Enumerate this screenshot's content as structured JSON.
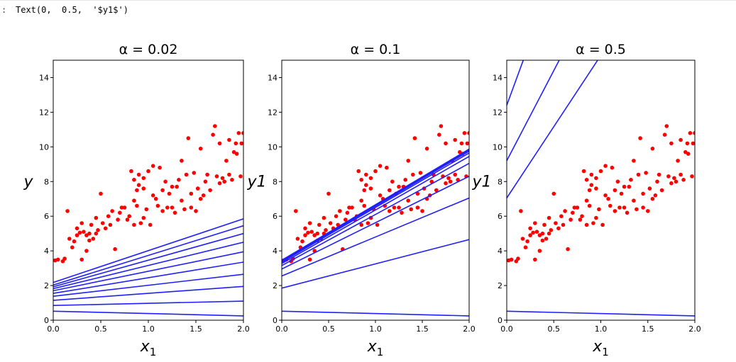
{
  "output": {
    "prompt": ":",
    "text": "Text(0,  0.5,  '$y1$')"
  },
  "colors": {
    "line": "#1f1fff",
    "points": "#ff0000",
    "axis": "#000000"
  },
  "chart_data": [
    {
      "type": "scatter+line",
      "title": "α = 0.02",
      "xlabel": "x",
      "xlabel_sub": "1",
      "ylabel": "y",
      "xlim": [
        0,
        2
      ],
      "ylim": [
        0,
        15
      ],
      "xticks": [
        0.0,
        0.5,
        1.0,
        1.5,
        2.0
      ],
      "xtick_labels": [
        "0.0",
        "0.5",
        "1.0",
        "1.5",
        "2.0"
      ],
      "yticks": [
        0,
        2,
        4,
        6,
        8,
        10,
        12,
        14
      ],
      "ytick_labels": [
        "0",
        "2",
        "4",
        "6",
        "8",
        "10",
        "12",
        "14"
      ],
      "lines": [
        {
          "y0": 0.52,
          "y1": 0.25
        },
        {
          "y0": 0.85,
          "y1": 1.1
        },
        {
          "y0": 1.15,
          "y1": 1.95
        },
        {
          "y0": 1.38,
          "y1": 2.65
        },
        {
          "y0": 1.55,
          "y1": 3.35
        },
        {
          "y0": 1.7,
          "y1": 3.95
        },
        {
          "y0": 1.82,
          "y1": 4.5
        },
        {
          "y0": 1.93,
          "y1": 5.0
        },
        {
          "y0": 2.03,
          "y1": 5.45
        },
        {
          "y0": 2.18,
          "y1": 5.85
        }
      ]
    },
    {
      "type": "scatter+line",
      "title": "α = 0.1",
      "xlabel": "x",
      "xlabel_sub": "1",
      "ylabel": "y1",
      "xlim": [
        0,
        2
      ],
      "ylim": [
        0,
        15
      ],
      "xticks": [
        0.0,
        0.5,
        1.0,
        1.5,
        2.0
      ],
      "xtick_labels": [
        "0.0",
        "0.5",
        "1.0",
        "1.5",
        "2.0"
      ],
      "yticks": [
        0,
        2,
        4,
        6,
        8,
        10,
        12,
        14
      ],
      "ytick_labels": [
        "0",
        "2",
        "4",
        "6",
        "8",
        "10",
        "12",
        "14"
      ],
      "lines": [
        {
          "y0": 0.52,
          "y1": 0.25
        },
        {
          "y0": 1.85,
          "y1": 4.65
        },
        {
          "y0": 2.55,
          "y1": 7.05
        },
        {
          "y0": 2.95,
          "y1": 8.3
        },
        {
          "y0": 3.15,
          "y1": 9.05
        },
        {
          "y0": 3.27,
          "y1": 9.45
        },
        {
          "y0": 3.35,
          "y1": 9.65
        },
        {
          "y0": 3.4,
          "y1": 9.75
        },
        {
          "y0": 3.43,
          "y1": 9.82
        },
        {
          "y0": 3.46,
          "y1": 9.87
        }
      ]
    },
    {
      "type": "scatter+line",
      "title": "α = 0.5",
      "xlabel": "x",
      "xlabel_sub": "1",
      "ylabel": "y1",
      "xlim": [
        0,
        2
      ],
      "ylim": [
        0,
        15
      ],
      "xticks": [
        0.0,
        0.5,
        1.0,
        1.5,
        2.0
      ],
      "xtick_labels": [
        "0.0",
        "0.5",
        "1.0",
        "1.5",
        "2.0"
      ],
      "yticks": [
        0,
        2,
        4,
        6,
        8,
        10,
        12,
        14
      ],
      "ytick_labels": [
        "0",
        "2",
        "4",
        "6",
        "8",
        "10",
        "12",
        "14"
      ],
      "lines": [
        {
          "y0": 0.52,
          "y1": 0.25
        },
        {
          "y0": 7.05,
          "y1": 23.5
        },
        {
          "y0": 9.2,
          "y1": 30.0
        },
        {
          "y0": 12.4,
          "y1": 42.0
        }
      ]
    }
  ],
  "points": [
    [
      0.02,
      3.45
    ],
    [
      0.05,
      3.5
    ],
    [
      0.1,
      3.4
    ],
    [
      0.12,
      3.55
    ],
    [
      0.15,
      6.3
    ],
    [
      0.17,
      4.7
    ],
    [
      0.2,
      4.2
    ],
    [
      0.22,
      4.55
    ],
    [
      0.25,
      5.3
    ],
    [
      0.28,
      5.05
    ],
    [
      0.3,
      5.6
    ],
    [
      0.3,
      3.5
    ],
    [
      0.32,
      5.1
    ],
    [
      0.35,
      4.9
    ],
    [
      0.35,
      4.0
    ],
    [
      0.38,
      4.6
    ],
    [
      0.38,
      5.0
    ],
    [
      0.4,
      5.5
    ],
    [
      0.42,
      4.7
    ],
    [
      0.45,
      5.0
    ],
    [
      0.47,
      5.2
    ],
    [
      0.5,
      7.3
    ],
    [
      0.52,
      5.6
    ],
    [
      0.55,
      5.3
    ],
    [
      0.58,
      6.0
    ],
    [
      0.6,
      5.5
    ],
    [
      0.62,
      6.3
    ],
    [
      0.65,
      4.1
    ],
    [
      0.68,
      5.8
    ],
    [
      0.7,
      6.2
    ],
    [
      0.75,
      6.5
    ],
    [
      0.78,
      5.8
    ],
    [
      0.8,
      6.0
    ],
    [
      0.82,
      8.6
    ],
    [
      0.85,
      5.5
    ],
    [
      0.85,
      8.1
    ],
    [
      0.88,
      6.6
    ],
    [
      0.88,
      7.5
    ],
    [
      0.9,
      7.8
    ],
    [
      0.9,
      8.4
    ],
    [
      0.92,
      5.6
    ],
    [
      0.95,
      8.2
    ],
    [
      0.95,
      7.6
    ],
    [
      0.98,
      6.4
    ],
    [
      1.0,
      8.6
    ],
    [
      1.02,
      5.5
    ],
    [
      1.05,
      8.9
    ],
    [
      1.08,
      7.0
    ],
    [
      1.1,
      6.6
    ],
    [
      1.12,
      8.8
    ],
    [
      1.15,
      7.5
    ],
    [
      1.18,
      8.0
    ],
    [
      1.2,
      6.5
    ],
    [
      1.22,
      7.3
    ],
    [
      1.25,
      6.5
    ],
    [
      1.28,
      6.2
    ],
    [
      1.3,
      7.7
    ],
    [
      1.32,
      8.1
    ],
    [
      1.35,
      9.2
    ],
    [
      1.38,
      6.4
    ],
    [
      1.4,
      8.4
    ],
    [
      1.42,
      10.5
    ],
    [
      1.45,
      7.3
    ],
    [
      1.48,
      8.5
    ],
    [
      1.5,
      6.3
    ],
    [
      1.52,
      7.6
    ],
    [
      1.55,
      9.9
    ],
    [
      1.58,
      7.2
    ],
    [
      1.6,
      8.0
    ],
    [
      1.62,
      8.4
    ],
    [
      1.65,
      7.5
    ],
    [
      1.68,
      10.7
    ],
    [
      1.7,
      11.2
    ],
    [
      1.72,
      8.3
    ],
    [
      1.75,
      10.2
    ],
    [
      1.78,
      8.2
    ],
    [
      1.8,
      8.0
    ],
    [
      1.82,
      9.2
    ],
    [
      1.85,
      10.4
    ],
    [
      1.88,
      8.1
    ],
    [
      1.9,
      9.7
    ],
    [
      1.92,
      10.2
    ],
    [
      1.95,
      10.8
    ],
    [
      1.98,
      10.2
    ],
    [
      2.0,
      10.8
    ],
    [
      1.97,
      8.3
    ],
    [
      1.93,
      9.6
    ],
    [
      1.85,
      8.4
    ],
    [
      1.75,
      7.9
    ],
    [
      1.55,
      7.0
    ],
    [
      1.45,
      6.5
    ],
    [
      1.35,
      6.9
    ],
    [
      1.25,
      7.7
    ],
    [
      1.15,
      6.3
    ],
    [
      1.05,
      7.2
    ],
    [
      0.95,
      5.9
    ],
    [
      0.85,
      6.9
    ],
    [
      0.72,
      6.5
    ],
    [
      0.45,
      5.9
    ],
    [
      0.25,
      4.9
    ]
  ]
}
